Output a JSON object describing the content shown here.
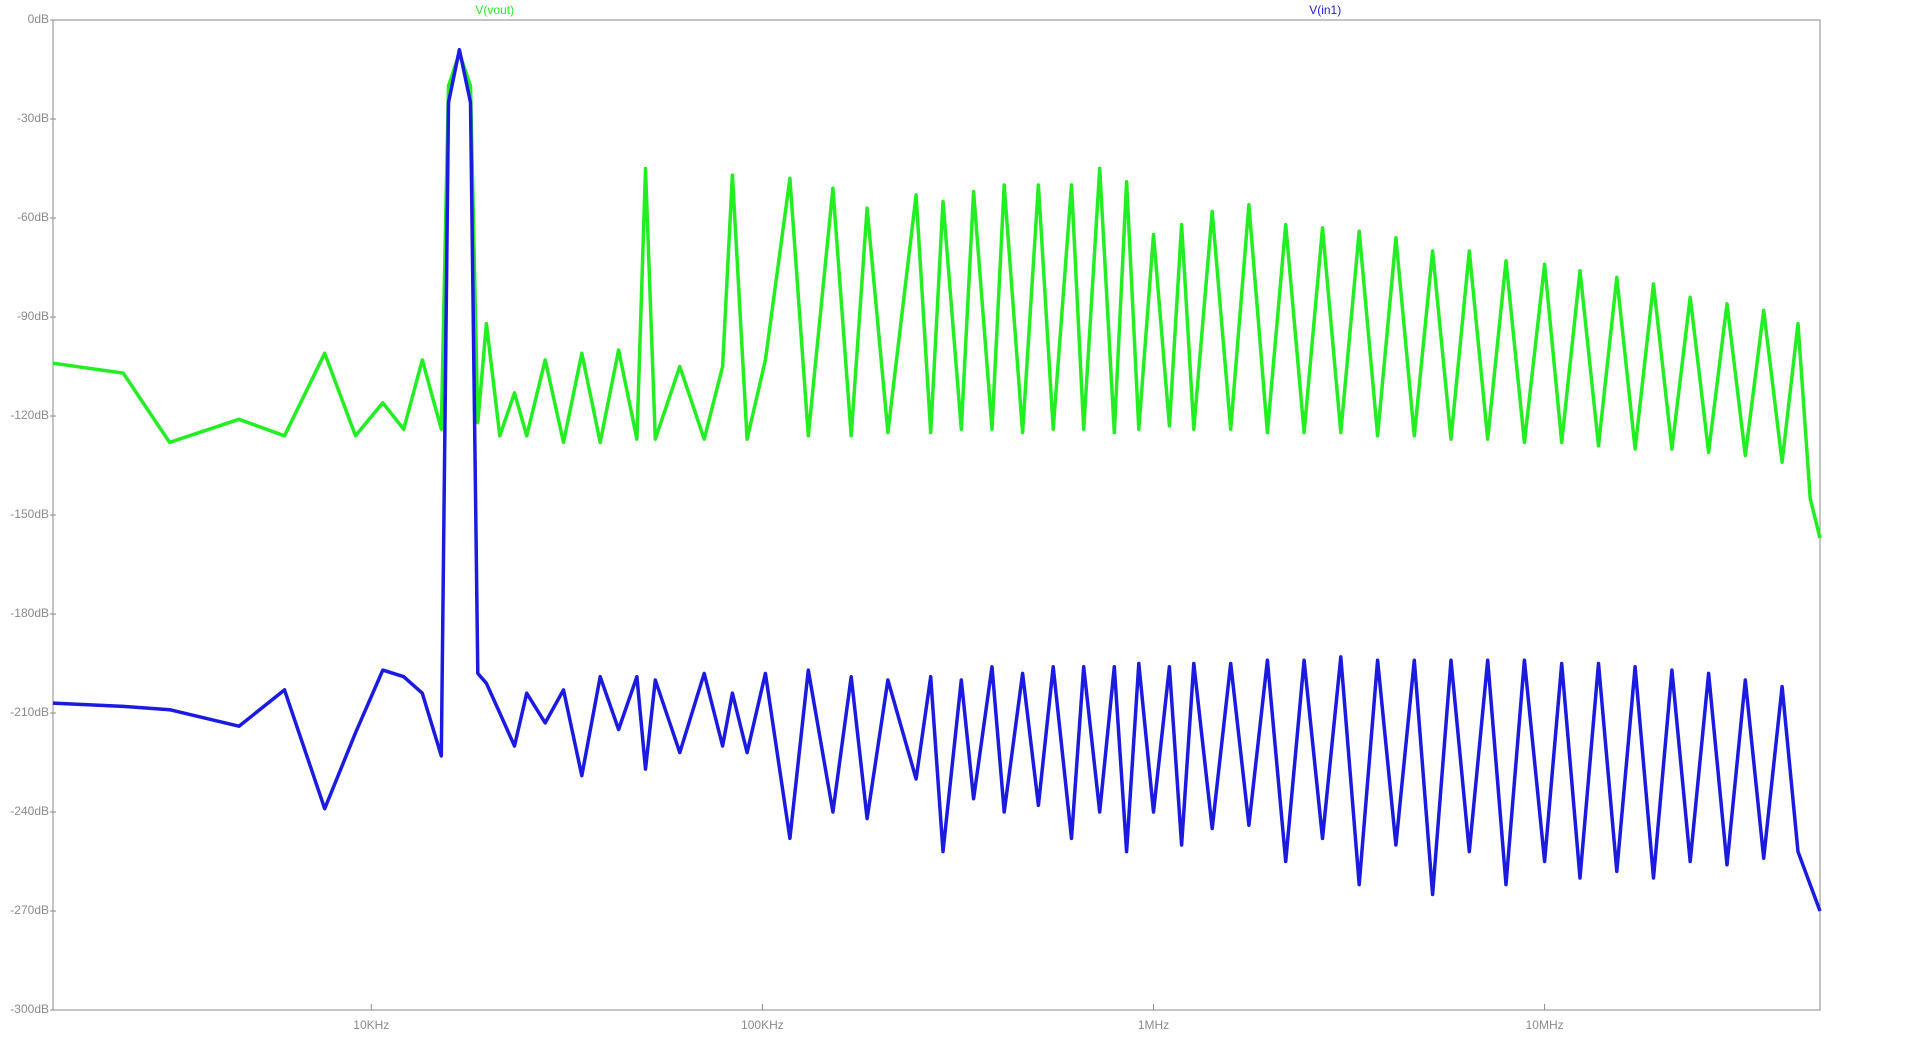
{
  "chart_data": {
    "type": "line",
    "log_x": true,
    "grid": false,
    "x": [
      1535,
      2320,
      3050,
      4590,
      6000,
      7600,
      9110,
      10700,
      12100,
      13500,
      15100,
      15750,
      16800,
      17930,
      18720,
      19690,
      21310,
      23240,
      24970,
      27830,
      31000,
      34540,
      38480,
      42880,
      47770,
      50240,
      53220,
      61480,
      71000,
      79120,
      83800,
      91400,
      101800,
      117600,
      131000,
      151400,
      168700,
      185200,
      209400,
      247100,
      269400,
      289500,
      322500,
      346700,
      386300,
      415200,
      462600,
      507900,
      553900,
      617100,
      663100,
      728500,
      793800,
      853300,
      917200,
      1000000,
      1098000,
      1180000,
      1268000,
      1413000,
      1575000,
      1754000,
      1955000,
      2178000,
      2427000,
      2704000,
      3013000,
      3357000,
      3740000,
      4166000,
      4642000,
      5171000,
      5762000,
      6419000,
      7152000,
      7968000,
      8878000,
      10000000,
      11060000,
      12320000,
      13730000,
      15300000,
      17040000,
      18990000,
      21160000,
      23570000,
      26260000,
      29260000,
      32600000,
      36330000,
      40470000,
      44460000,
      47770000,
      50600000
    ],
    "series": [
      {
        "name": "V(vout)",
        "color": "#22ee22",
        "values": [
          -104,
          -107,
          -128,
          -121,
          -126,
          -101,
          -126,
          -116,
          -124,
          -103,
          -124,
          -20,
          -10,
          -20,
          -122,
          -92,
          -126,
          -113,
          -126,
          -103,
          -128,
          -101,
          -128,
          -100,
          -127,
          -45,
          -127,
          -105,
          -127,
          -105,
          -47,
          -127,
          -103,
          -48,
          -126,
          -51,
          -126,
          -57,
          -125,
          -53,
          -125,
          -55,
          -124,
          -52,
          -124,
          -50,
          -125,
          -50,
          -124,
          -50,
          -124,
          -45,
          -125,
          -49,
          -124,
          -65,
          -123,
          -62,
          -124,
          -58,
          -124,
          -56,
          -125,
          -62,
          -125,
          -63,
          -125,
          -64,
          -126,
          -66,
          -126,
          -70,
          -127,
          -70,
          -127,
          -73,
          -128,
          -74,
          -128,
          -76,
          -129,
          -78,
          -130,
          -80,
          -130,
          -84,
          -131,
          -86,
          -132,
          -88,
          -134,
          -92,
          -145,
          -157
        ]
      },
      {
        "name": "V(in1)",
        "color": "#1a1ae0",
        "values": [
          -207,
          -208,
          -209,
          -214,
          -203,
          -239,
          -216,
          -197,
          -199,
          -204,
          -223,
          -25,
          -9,
          -25,
          -198,
          -201,
          -210,
          -220,
          -204,
          -213,
          -203,
          -229,
          -199,
          -215,
          -199,
          -227,
          -200,
          -222,
          -198,
          -220,
          -204,
          -222,
          -198,
          -248,
          -197,
          -240,
          -199,
          -242,
          -200,
          -230,
          -199,
          -252,
          -200,
          -236,
          -196,
          -240,
          -198,
          -238,
          -196,
          -248,
          -196,
          -240,
          -196,
          -252,
          -195,
          -240,
          -196,
          -250,
          -195,
          -245,
          -195,
          -244,
          -194,
          -255,
          -194,
          -248,
          -193,
          -262,
          -194,
          -250,
          -194,
          -265,
          -194,
          -252,
          -194,
          -262,
          -194,
          -255,
          -195,
          -260,
          -195,
          -258,
          -196,
          -260,
          -197,
          -255,
          -198,
          -256,
          -200,
          -254,
          -202,
          -252,
          -262,
          -270
        ]
      }
    ],
    "xlim": [
      1535,
      50600000
    ],
    "xticks": [
      {
        "value": 10000,
        "label": "10KHz"
      },
      {
        "value": 100000,
        "label": "100KHz"
      },
      {
        "value": 1000000,
        "label": "1MHz"
      },
      {
        "value": 10000000,
        "label": "10MHz"
      }
    ],
    "ylim": [
      -300,
      0
    ],
    "yticks": [
      {
        "value": 0,
        "label": "0dB"
      },
      {
        "value": -30,
        "label": "-30dB"
      },
      {
        "value": -60,
        "label": "-60dB"
      },
      {
        "value": -90,
        "label": "-90dB"
      },
      {
        "value": -120,
        "label": "-120dB"
      },
      {
        "value": -150,
        "label": "-150dB"
      },
      {
        "value": -180,
        "label": "-180dB"
      },
      {
        "value": -210,
        "label": "-210dB"
      },
      {
        "value": -240,
        "label": "-240dB"
      },
      {
        "value": -270,
        "label": "-270dB"
      },
      {
        "value": -300,
        "label": "-300dB"
      }
    ]
  }
}
